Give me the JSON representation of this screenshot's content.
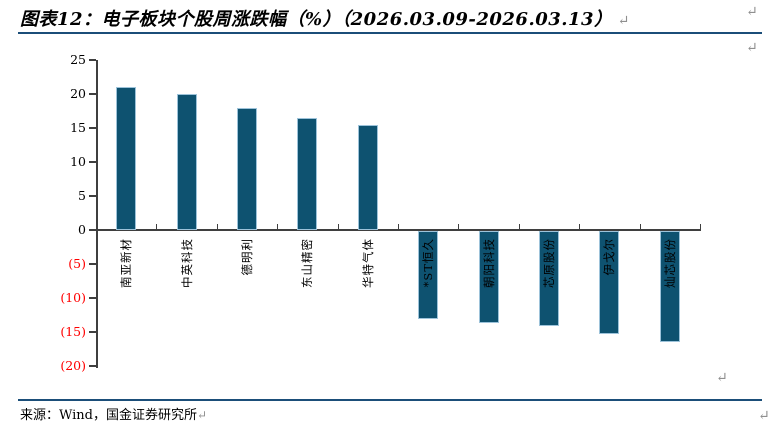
{
  "header": {
    "title": "图表12：电子板块个股周涨跌幅（%）（2026.03.09-2026.03.13）"
  },
  "footer": {
    "source": "来源：Wind，国金证券研究所"
  },
  "marks": {
    "pilcrow": "↵"
  },
  "colors": {
    "bar_fill": "#0e5270",
    "bar_edge": "#9dc3da",
    "rule_navy": "#1b4e79",
    "axis": "#3f3f3f",
    "negative_tick_label": "#ff0000",
    "paragraph_mark": "#8f8f8f"
  },
  "chart_data": {
    "type": "bar",
    "title": "电子板块个股周涨跌幅（%）（2026.03.09-2026.03.13）",
    "categories": [
      "南亚新材",
      "中英科技",
      "德明利",
      "东山精密",
      "华特气体",
      "*ST恒久",
      "朝阳科技",
      "芯原股份",
      "伊戈尔",
      "灿芯股份"
    ],
    "values": [
      21,
      20,
      18,
      16.4,
      15.5,
      -13,
      -13.5,
      -14,
      -15.2,
      -16.3
    ],
    "xlabel": "",
    "ylabel": "",
    "ylim": [
      -20,
      25
    ],
    "ytick_step": 5,
    "grid": false,
    "legend": null,
    "y_ticks": [
      {
        "label": "25",
        "value": 25
      },
      {
        "label": "20",
        "value": 20
      },
      {
        "label": "15",
        "value": 15
      },
      {
        "label": "10",
        "value": 10
      },
      {
        "label": "5",
        "value": 5
      },
      {
        "label": "0",
        "value": 0
      },
      {
        "label": "(5)",
        "value": -5
      },
      {
        "label": "(10)",
        "value": -10
      },
      {
        "label": "(15)",
        "value": -15
      },
      {
        "label": "(20)",
        "value": -20
      }
    ]
  }
}
